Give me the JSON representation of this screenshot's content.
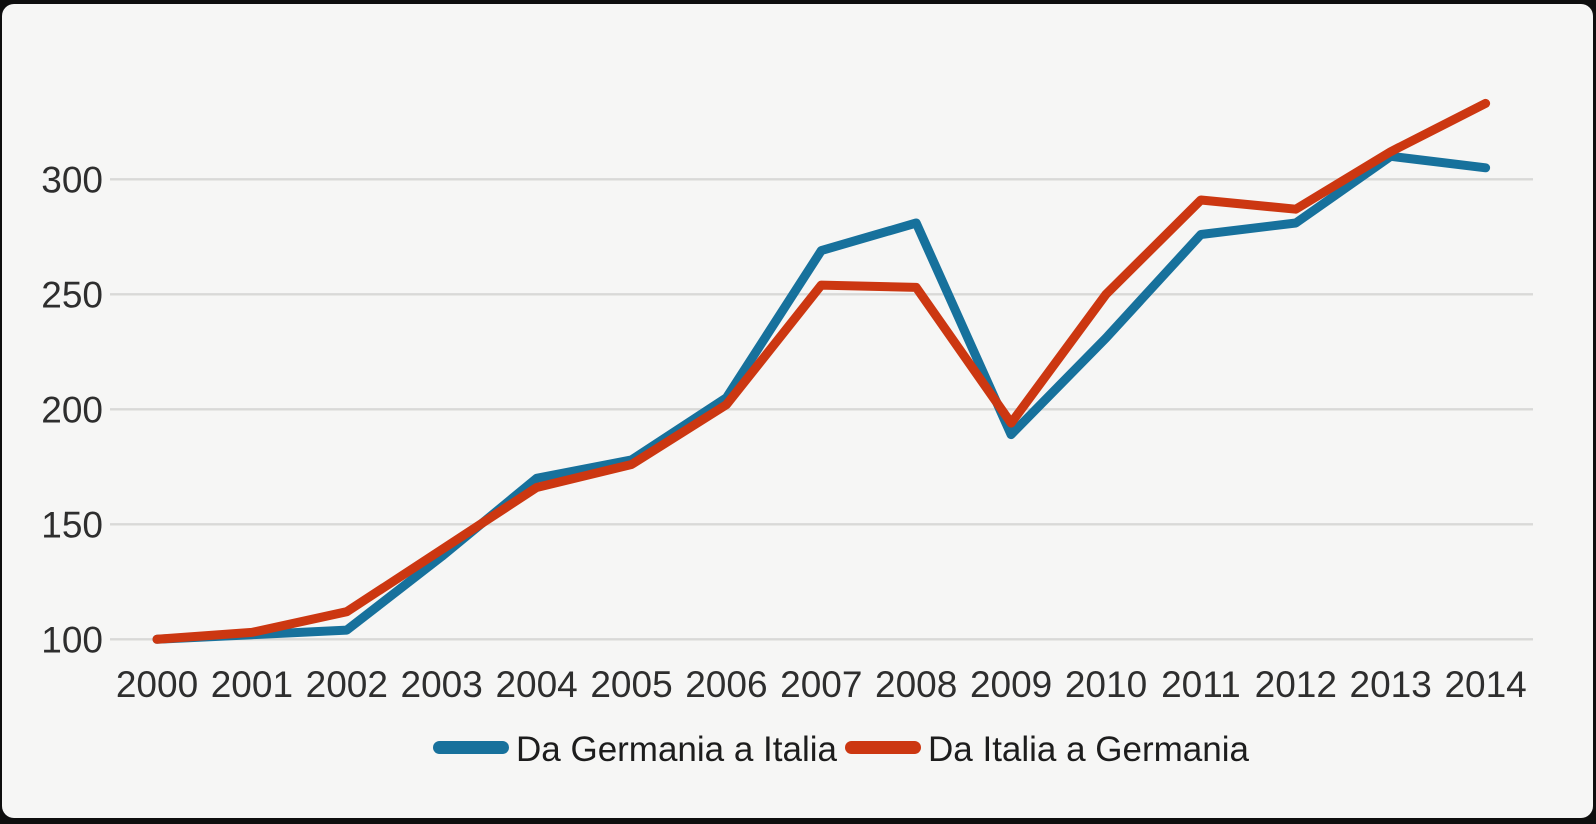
{
  "chart_data": {
    "type": "line",
    "x": [
      2000,
      2001,
      2002,
      2003,
      2004,
      2005,
      2006,
      2007,
      2008,
      2009,
      2010,
      2011,
      2012,
      2013,
      2014
    ],
    "series": [
      {
        "name": "Da Germania a Italia",
        "color": "#17719c",
        "values": [
          100,
          102,
          104,
          136,
          170,
          178,
          205,
          269,
          281,
          189,
          231,
          276,
          281,
          310,
          305
        ]
      },
      {
        "name": "Da Italia a Germania",
        "color": "#cc3711",
        "values": [
          100,
          103,
          112,
          139,
          166,
          176,
          202,
          254,
          253,
          194,
          250,
          291,
          287,
          312,
          333
        ]
      }
    ],
    "title": "",
    "xlabel": "",
    "ylabel": "",
    "yticks": [
      100,
      150,
      200,
      250,
      300
    ],
    "ylim": [
      100,
      340
    ],
    "grid": "horizontal",
    "legend_position": "bottom"
  },
  "colors": {
    "background": "#f6f6f5",
    "frame": "#0e0e0e",
    "gridline": "#d9d9d7",
    "axis_text": "#2e2e2e",
    "legend_text": "#1d1d1d"
  }
}
